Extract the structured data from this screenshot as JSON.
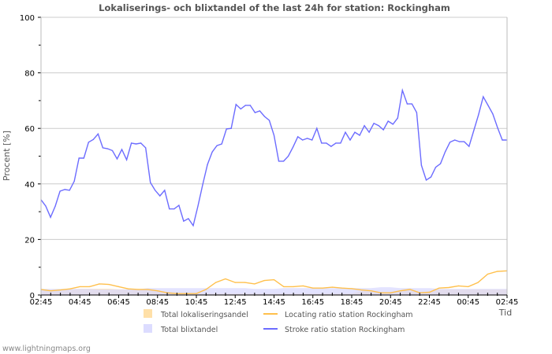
{
  "chart_data": {
    "type": "line",
    "title": "Lokaliserings- och blixtandel of the last 24h for station: Rockingham",
    "ylabel": "Procent   [%]",
    "xlabel": "Tid",
    "ylim": [
      0,
      100
    ],
    "yticks": [
      "0",
      "20",
      "40",
      "60",
      "80",
      "100"
    ],
    "xticks": [
      "02:45",
      "04:45",
      "06:45",
      "08:45",
      "10:45",
      "12:45",
      "14:45",
      "16:45",
      "18:45",
      "20:45",
      "22:45",
      "00:45",
      "02:45"
    ],
    "x_range_hours": [
      0,
      24
    ],
    "grid": true,
    "legend_position": "bottom",
    "series": [
      {
        "name": "Total lokaliseringsandel",
        "kind": "area",
        "color": "#ffe0a8",
        "values": [
          2,
          1.8,
          1.8,
          2,
          2.2,
          2.2,
          2.2,
          2.2,
          2,
          2,
          2,
          2,
          1.5,
          0.8,
          0.5,
          0.5,
          0.5,
          0.5,
          0.5,
          0.5,
          0.5,
          0.5,
          0.5,
          0.5,
          0.5,
          0.5,
          0.5,
          0.5,
          0.5,
          0.5,
          0.5,
          0.5,
          0.5,
          1.5,
          1.5,
          0.8,
          0.8,
          1.5,
          2,
          0.8,
          1,
          2,
          2,
          2,
          2,
          2,
          2,
          2,
          2
        ]
      },
      {
        "name": "Total blixtandel",
        "kind": "area",
        "color": "#dcdcff",
        "values": [
          2.2,
          2.2,
          2.2,
          2.2,
          2.2,
          2.2,
          2,
          2,
          2,
          2,
          2,
          2.5,
          2.5,
          2.5,
          2.5,
          2.5,
          2.5,
          2.5,
          2.5,
          2.5,
          2.5,
          2.5,
          2.2,
          2.2,
          2.2,
          2.5,
          2.5,
          2.5,
          2.5,
          2.5,
          2.5,
          2.5,
          2.5,
          2.5,
          2.5,
          2.8,
          2.8,
          2.5,
          2.5,
          2.5,
          2.5,
          2.2,
          2.2,
          2.2,
          2.2,
          2.2,
          2.2,
          2.2,
          2.2
        ]
      },
      {
        "name": "Locating ratio station Rockingham",
        "kind": "line",
        "color": "#ffc04c",
        "values": [
          2,
          1.5,
          1.8,
          2.2,
          3,
          3,
          4,
          3.8,
          3,
          2.2,
          2,
          2,
          1.5,
          0.8,
          0.5,
          0.5,
          0.5,
          2,
          4.5,
          5.8,
          4.5,
          4.5,
          4,
          5.2,
          5.5,
          3,
          3,
          3.3,
          2.5,
          2.5,
          2.8,
          2.5,
          2.3,
          1.8,
          1.5,
          0.8,
          0.8,
          1.5,
          2,
          0.8,
          1,
          2.5,
          2.7,
          3.3,
          3,
          4.5,
          7.5,
          8.5,
          8.7
        ]
      },
      {
        "name": "Stroke ratio station Rockingham",
        "kind": "line",
        "color": "#6c6cff",
        "values": [
          34.3,
          32,
          28,
          32,
          37.4,
          38,
          37.7,
          41,
          49.3,
          49.3,
          55,
          56,
          58,
          53,
          52.7,
          52,
          49,
          52.4,
          48.7,
          54.7,
          54.4,
          54.7,
          53,
          40.5,
          37.7,
          35.7,
          37.7,
          31,
          31,
          32.3,
          26.6,
          27.5,
          25,
          32,
          39.7,
          47,
          51.5,
          53.8,
          54.4,
          59.8,
          60,
          68.6,
          67,
          68.3,
          68.3,
          65.7,
          66.3,
          64.3,
          62.9,
          57.5,
          48.2,
          48.2,
          50,
          53.3,
          57,
          55.8,
          56.4,
          55.8,
          60,
          54.7,
          54.7,
          53.5,
          54.7,
          54.7,
          58.6,
          55.8,
          58.6,
          57.5,
          61,
          58.6,
          61.8,
          61,
          59.5,
          62.6,
          61.5,
          63.7,
          73.7,
          68.8,
          68.8,
          65.7,
          46.7,
          41.4,
          42.5,
          46,
          47.3,
          51.6,
          55,
          55.8,
          55.2,
          55.2,
          53.5,
          59.2,
          64.9,
          71.4,
          68.3,
          65.2,
          60.3,
          55.8,
          55.8
        ]
      }
    ]
  },
  "footer": {
    "site": "www.lightningmaps.org"
  }
}
